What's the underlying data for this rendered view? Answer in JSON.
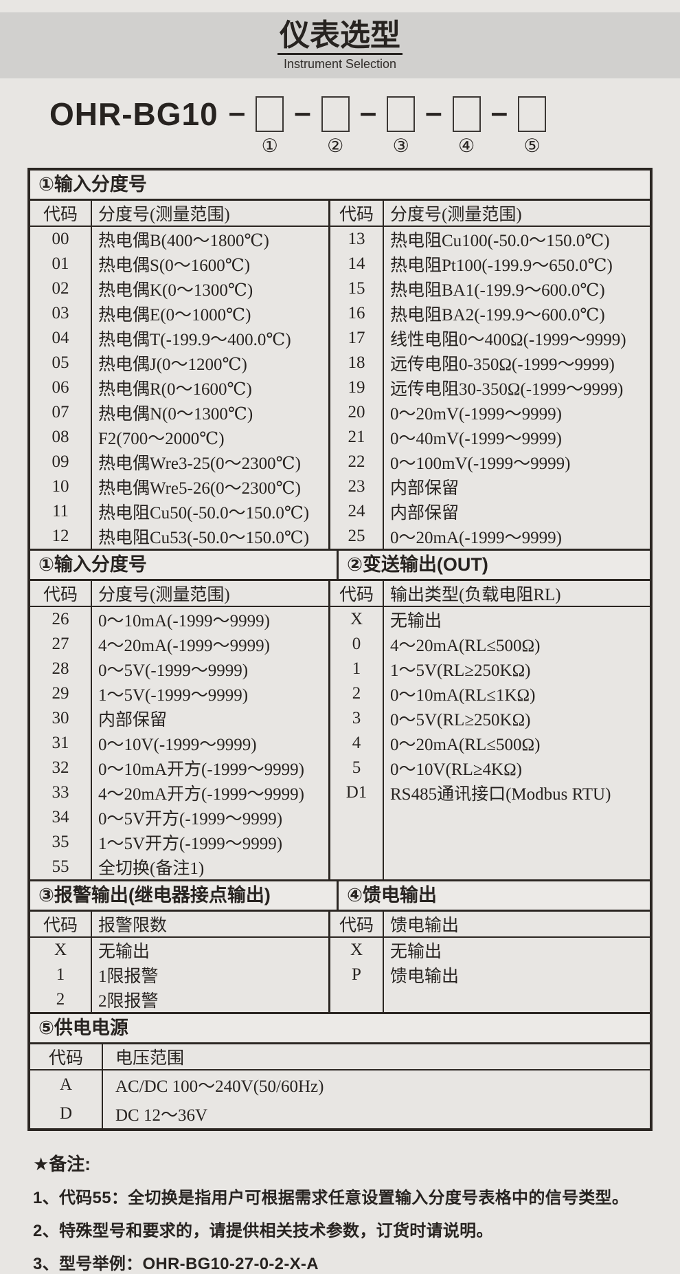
{
  "header": {
    "title": "仪表选型",
    "subtitle": "Instrument Selection"
  },
  "model": {
    "prefix": "OHR-BG10",
    "separator": "–",
    "positions": [
      "①",
      "②",
      "③",
      "④",
      "⑤"
    ]
  },
  "sections": {
    "s1": {
      "title": "①输入分度号",
      "left": {
        "headers": [
          "代码",
          "分度号(测量范围)"
        ],
        "rows": [
          [
            "00",
            "热电偶B(400～1800℃)"
          ],
          [
            "01",
            "热电偶S(0～1600℃)"
          ],
          [
            "02",
            "热电偶K(0～1300℃)"
          ],
          [
            "03",
            "热电偶E(0～1000℃)"
          ],
          [
            "04",
            "热电偶T(-199.9～400.0℃)"
          ],
          [
            "05",
            "热电偶J(0～1200℃)"
          ],
          [
            "06",
            "热电偶R(0～1600℃)"
          ],
          [
            "07",
            "热电偶N(0～1300℃)"
          ],
          [
            "08",
            "F2(700～2000℃)"
          ],
          [
            "09",
            "热电偶Wre3-25(0～2300℃)"
          ],
          [
            "10",
            "热电偶Wre5-26(0～2300℃)"
          ],
          [
            "11",
            "热电阻Cu50(-50.0～150.0℃)"
          ],
          [
            "12",
            "热电阻Cu53(-50.0～150.0℃)"
          ]
        ]
      },
      "right": {
        "headers": [
          "代码",
          "分度号(测量范围)"
        ],
        "rows": [
          [
            "13",
            "热电阻Cu100(-50.0～150.0℃)"
          ],
          [
            "14",
            "热电阻Pt100(-199.9～650.0℃)"
          ],
          [
            "15",
            "热电阻BA1(-199.9～600.0℃)"
          ],
          [
            "16",
            "热电阻BA2(-199.9～600.0℃)"
          ],
          [
            "17",
            "线性电阻0～400Ω(-1999～9999)"
          ],
          [
            "18",
            "远传电阻0-350Ω(-1999～9999)"
          ],
          [
            "19",
            "远传电阻30-350Ω(-1999～9999)"
          ],
          [
            "20",
            "0～20mV(-1999～9999)"
          ],
          [
            "21",
            "0～40mV(-1999～9999)"
          ],
          [
            "22",
            "0～100mV(-1999～9999)"
          ],
          [
            "23",
            "内部保留"
          ],
          [
            "24",
            "内部保留"
          ],
          [
            "25",
            "0～20mA(-1999～9999)"
          ]
        ]
      }
    },
    "s2": {
      "left_title": "①输入分度号",
      "right_title": "②变送输出(OUT)",
      "left": {
        "headers": [
          "代码",
          "分度号(测量范围)"
        ],
        "rows": [
          [
            "26",
            "0～10mA(-1999～9999)"
          ],
          [
            "27",
            "4～20mA(-1999～9999)"
          ],
          [
            "28",
            "0～5V(-1999～9999)"
          ],
          [
            "29",
            "1～5V(-1999～9999)"
          ],
          [
            "30",
            "内部保留"
          ],
          [
            "31",
            "0～10V(-1999～9999)"
          ],
          [
            "32",
            "0～10mA开方(-1999～9999)"
          ],
          [
            "33",
            "4～20mA开方(-1999～9999)"
          ],
          [
            "34",
            "0～5V开方(-1999～9999)"
          ],
          [
            "35",
            "1～5V开方(-1999～9999)"
          ],
          [
            "55",
            "全切换(备注1)"
          ]
        ]
      },
      "right": {
        "headers": [
          "代码",
          "输出类型(负载电阻RL)"
        ],
        "rows": [
          [
            "X",
            "无输出"
          ],
          [
            "0",
            "4～20mA(RL≤500Ω)"
          ],
          [
            "1",
            "1～5V(RL≥250KΩ)"
          ],
          [
            "2",
            "0～10mA(RL≤1KΩ)"
          ],
          [
            "3",
            "0～5V(RL≥250KΩ)"
          ],
          [
            "4",
            "0～20mA(RL≤500Ω)"
          ],
          [
            "5",
            "0～10V(RL≥4KΩ)"
          ],
          [
            "D1",
            "RS485通讯接口(Modbus RTU)"
          ]
        ]
      }
    },
    "s3": {
      "left_title": "③报警输出(继电器接点输出)",
      "right_title": "④馈电输出",
      "left": {
        "headers": [
          "代码",
          "报警限数"
        ],
        "rows": [
          [
            "X",
            "无输出"
          ],
          [
            "1",
            "1限报警"
          ],
          [
            "2",
            "2限报警"
          ]
        ]
      },
      "right": {
        "headers": [
          "代码",
          "馈电输出"
        ],
        "rows": [
          [
            "X",
            "无输出"
          ],
          [
            "P",
            "馈电输出"
          ]
        ]
      }
    },
    "s4": {
      "title": "⑤供电电源",
      "headers": [
        "代码",
        "电压范围"
      ],
      "rows": [
        [
          "A",
          "AC/DC 100～240V(50/60Hz)"
        ],
        [
          "D",
          "DC 12～36V"
        ]
      ]
    }
  },
  "notes": {
    "title": "★备注:",
    "items": [
      "1、代码55：全切换是指用户可根据需求任意设置输入分度号表格中的信号类型。",
      "2、特殊型号和要求的，请提供相关技术参数，订货时请说明。",
      "3、型号举例：OHR-BG10-27-0-2-X-A"
    ]
  },
  "colors": {
    "page_bg": "#e8e6e3",
    "band_bg": "#d1d0ce",
    "border": "#2b2622",
    "text": "#272320"
  }
}
